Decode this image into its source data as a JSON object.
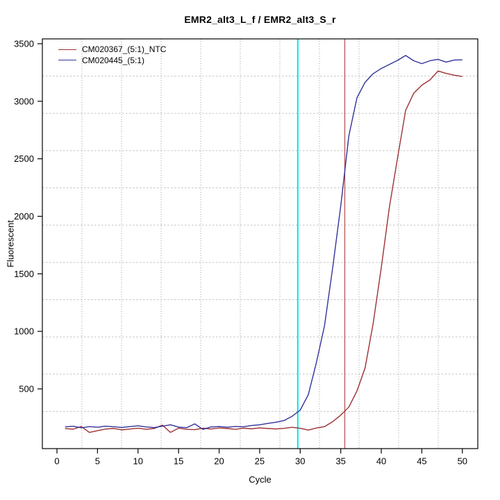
{
  "chart_data": {
    "type": "line",
    "title": "EMR2_alt3_L_f / EMR2_alt3_S_r",
    "xlabel": "Cycle",
    "ylabel": "Fluorescent",
    "x_ticks": [
      0,
      5,
      10,
      15,
      20,
      25,
      30,
      35,
      40,
      45,
      50
    ],
    "y_ticks": [
      500,
      1000,
      1500,
      2000,
      2500,
      3000,
      3500
    ],
    "xlim": [
      -1.8,
      51.9
    ],
    "ylim": [
      -19,
      3542
    ],
    "grid": {
      "nx": 11,
      "ny": 11,
      "style": "dotted",
      "v_color": "#9a9a9a",
      "h_color": "#c4c4c4"
    },
    "background": "#ffffff",
    "axis_color": "#000000",
    "x": [
      1,
      2,
      3,
      4,
      5,
      6,
      7,
      8,
      9,
      10,
      11,
      12,
      13,
      14,
      15,
      16,
      17,
      18,
      19,
      20,
      21,
      22,
      23,
      24,
      25,
      26,
      27,
      28,
      29,
      30,
      31,
      32,
      33,
      34,
      35,
      36,
      37,
      38,
      39,
      40,
      41,
      42,
      43,
      44,
      45,
      46,
      47,
      48,
      49,
      50
    ],
    "series": [
      {
        "name": "CM020367_(5:1)_NTC",
        "color": "#9c3032",
        "values": [
          155,
          150,
          173,
          122,
          137,
          151,
          156,
          144,
          151,
          159,
          149,
          156,
          185,
          122,
          159,
          149,
          146,
          159,
          151,
          161,
          156,
          149,
          159,
          153,
          161,
          156,
          152,
          157,
          166,
          158,
          142,
          160,
          172,
          215,
          272,
          342,
          482,
          682,
          1070,
          1555,
          2080,
          2505,
          2920,
          3070,
          3140,
          3185,
          3263,
          3242,
          3226,
          3215
        ]
      },
      {
        "name": "CM020445_(5:1)",
        "color": "#32329b",
        "values": [
          170,
          175,
          162,
          172,
          167,
          176,
          171,
          165,
          172,
          179,
          169,
          164,
          176,
          188,
          168,
          163,
          196,
          148,
          169,
          173,
          167,
          173,
          171,
          182,
          188,
          200,
          210,
          225,
          262,
          316,
          450,
          730,
          1050,
          1550,
          2090,
          2700,
          3030,
          3165,
          3240,
          3285,
          3320,
          3355,
          3398,
          3352,
          3327,
          3352,
          3364,
          3340,
          3358,
          3360
        ]
      }
    ],
    "vlines": [
      {
        "x": 29.7,
        "color": "#00e8e8",
        "width": 2,
        "name": "threshold-cycle-line-cyan"
      },
      {
        "x": 35.5,
        "color": "#b24d4d",
        "width": 1.2,
        "name": "ct-marker-line-red"
      }
    ],
    "legend": {
      "position": "top-left"
    }
  }
}
